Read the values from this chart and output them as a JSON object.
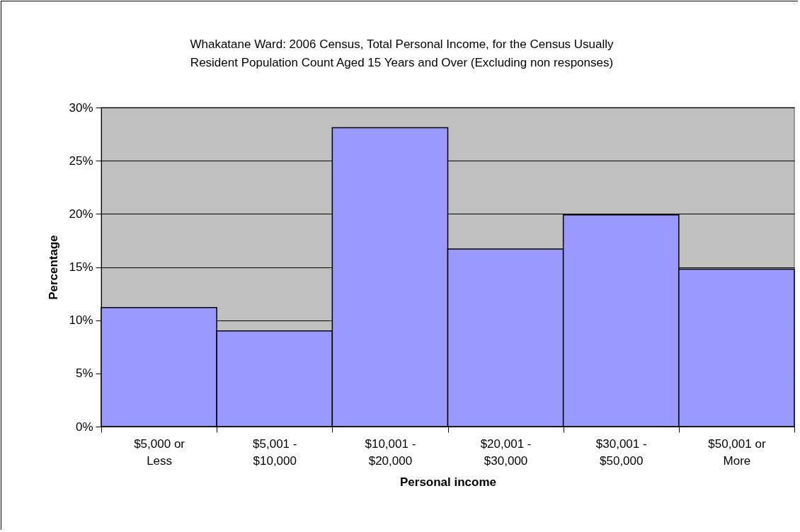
{
  "chart_data": {
    "type": "bar",
    "title": "Whakatane Ward: 2006 Census, Total Personal Income, for the Census Usually Resident Population Count Aged 15 Years and Over (Excluding non responses)",
    "xlabel": "Personal income",
    "ylabel": "Percentage",
    "categories": [
      "$5,000 or Less",
      "$5,001 - $10,000",
      "$10,001 - $20,000",
      "$20,001 - $30,000",
      "$30,001 - $50,000",
      "$50,001 or More"
    ],
    "values": [
      11.2,
      9.0,
      28.1,
      16.7,
      19.9,
      14.8
    ],
    "color": "#9999ff",
    "ylim": [
      0,
      30
    ],
    "yticks": [
      {
        "value": 0,
        "label": "0%"
      },
      {
        "value": 5,
        "label": "5%"
      },
      {
        "value": 10,
        "label": "10%"
      },
      {
        "value": 15,
        "label": "15%"
      },
      {
        "value": 20,
        "label": "20%"
      },
      {
        "value": 25,
        "label": "25%"
      },
      {
        "value": 30,
        "label": "30%"
      }
    ],
    "grid": "y"
  }
}
